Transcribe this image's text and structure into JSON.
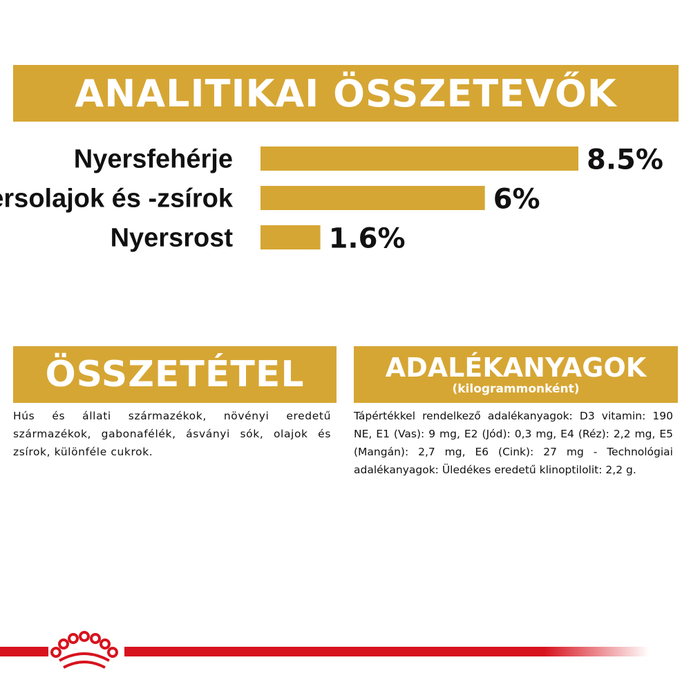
{
  "title": "ANALITIKAI ÖSSZETEVŐK",
  "chart_data": {
    "type": "bar",
    "orientation": "horizontal",
    "categories": [
      "Nyersfehérje",
      "Nyersolajok és -zsírok",
      "Nyersrost"
    ],
    "values": [
      8.5,
      6,
      1.6
    ],
    "value_labels": [
      "8.5%",
      "6%",
      "1.6%"
    ],
    "unit": "%",
    "bar_color": "#d6a634",
    "xlim": [
      0,
      8.5
    ]
  },
  "composition": {
    "heading": "ÖSSZETÉTEL",
    "text": "Hús és állati származékok, növényi eredetű származékok, gabonafélék, ásványi sók, olajok és zsírok, különféle cukrok."
  },
  "additives": {
    "heading": "ADALÉKANYAGOK",
    "subheading": "(kilogrammonként)",
    "text": "Tápértékkel rendelkező adalékanyagok: D3 vitamin: 190 NE, E1 (Vas): 9 mg, E2 (Jód): 0,3 mg, E4 (Réz): 2,2 mg, E5 (Mangán): 2,7 mg, E6 (Cink): 27 mg - Technológiai adalékanyagok: Üledékes eredetű klinoptilolit: 2,2 g."
  },
  "colors": {
    "accent": "#d6a634",
    "brand_red": "#d7131e"
  },
  "footer": {
    "logo": "royal-canin-crown-icon"
  }
}
